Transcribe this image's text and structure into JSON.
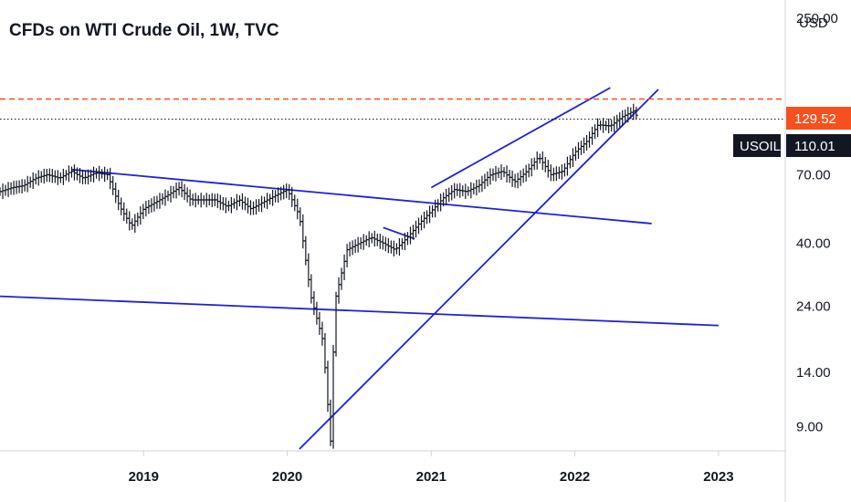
{
  "chart_data": {
    "type": "bar",
    "style": "ohlc-weekly",
    "title": "CFDs on WTI Crude Oil, 1W, TVC",
    "symbol": "USOIL",
    "currency": "USD",
    "y_scale": "log",
    "ylim": [
      7.5,
      290
    ],
    "xlim": [
      "2018-01-01",
      "2023-06-15"
    ],
    "x_ticks": [
      "2019",
      "2020",
      "2021",
      "2022",
      "2023"
    ],
    "y_ticks": [
      "250.00",
      "129.52",
      "110.01",
      "70.00",
      "40.00",
      "24.00",
      "14.00",
      "9.00"
    ],
    "y_tick_values": [
      250,
      70,
      40,
      24,
      14,
      9
    ],
    "horizontal_levels": [
      {
        "value": 129.52,
        "label": "129.52",
        "color": "#f4511e",
        "style": "dashed"
      },
      {
        "value": 110.01,
        "label": "110.01",
        "tag": "USOIL",
        "color": "#131722",
        "style": "dotted"
      }
    ],
    "series": [
      {
        "values_date_close": [
          [
            "2018-01-01",
            61
          ],
          [
            "2018-02-01",
            63
          ],
          [
            "2018-03-01",
            64
          ],
          [
            "2018-04-01",
            68
          ],
          [
            "2018-05-01",
            70
          ],
          [
            "2018-06-01",
            68
          ],
          [
            "2018-07-01",
            72
          ],
          [
            "2018-08-01",
            68
          ],
          [
            "2018-09-01",
            71
          ],
          [
            "2018-10-01",
            70
          ],
          [
            "2018-11-01",
            54
          ],
          [
            "2018-12-01",
            46
          ],
          [
            "2019-01-01",
            53
          ],
          [
            "2019-02-01",
            56
          ],
          [
            "2019-03-01",
            59
          ],
          [
            "2019-04-01",
            63
          ],
          [
            "2019-05-01",
            57
          ],
          [
            "2019-06-01",
            57
          ],
          [
            "2019-07-01",
            57
          ],
          [
            "2019-08-01",
            54
          ],
          [
            "2019-09-01",
            57
          ],
          [
            "2019-10-01",
            53
          ],
          [
            "2019-11-01",
            56
          ],
          [
            "2019-12-01",
            59
          ],
          [
            "2020-01-01",
            62
          ],
          [
            "2020-02-01",
            50
          ],
          [
            "2020-03-01",
            26
          ],
          [
            "2020-04-01",
            18
          ],
          [
            "2020-04-20",
            8
          ],
          [
            "2020-05-01",
            25
          ],
          [
            "2020-06-01",
            38
          ],
          [
            "2020-07-01",
            40
          ],
          [
            "2020-08-01",
            42
          ],
          [
            "2020-09-01",
            40
          ],
          [
            "2020-10-01",
            38
          ],
          [
            "2020-11-01",
            42
          ],
          [
            "2020-12-01",
            47
          ],
          [
            "2021-01-01",
            52
          ],
          [
            "2021-02-01",
            58
          ],
          [
            "2021-03-01",
            62
          ],
          [
            "2021-04-01",
            61
          ],
          [
            "2021-05-01",
            64
          ],
          [
            "2021-06-01",
            70
          ],
          [
            "2021-07-01",
            72
          ],
          [
            "2021-08-01",
            66
          ],
          [
            "2021-09-01",
            72
          ],
          [
            "2021-10-01",
            81
          ],
          [
            "2021-11-01",
            70
          ],
          [
            "2021-12-01",
            72
          ],
          [
            "2022-01-01",
            84
          ],
          [
            "2022-02-01",
            92
          ],
          [
            "2022-03-01",
            105
          ],
          [
            "2022-04-01",
            104
          ],
          [
            "2022-05-01",
            112
          ],
          [
            "2022-06-01",
            118
          ],
          [
            "2022-06-10",
            110.01
          ]
        ]
      }
    ],
    "trendlines": [
      {
        "start": [
          "2018-07-01",
          73
        ],
        "end": [
          "2022-07-15",
          47
        ]
      },
      {
        "start": [
          "2018-01-01",
          26
        ],
        "end": [
          "2023-01-01",
          20.5
        ]
      },
      {
        "start": [
          "2020-02-01",
          7.5
        ],
        "end": [
          "2022-08-01",
          140
        ]
      },
      {
        "start": [
          "2020-09-01",
          45.5
        ],
        "end": [
          "2020-11-20",
          41.5
        ]
      },
      {
        "start": [
          "2021-01-01",
          63
        ],
        "end": [
          "2022-04-01",
          142
        ]
      }
    ],
    "grid": false,
    "legend": "none"
  }
}
